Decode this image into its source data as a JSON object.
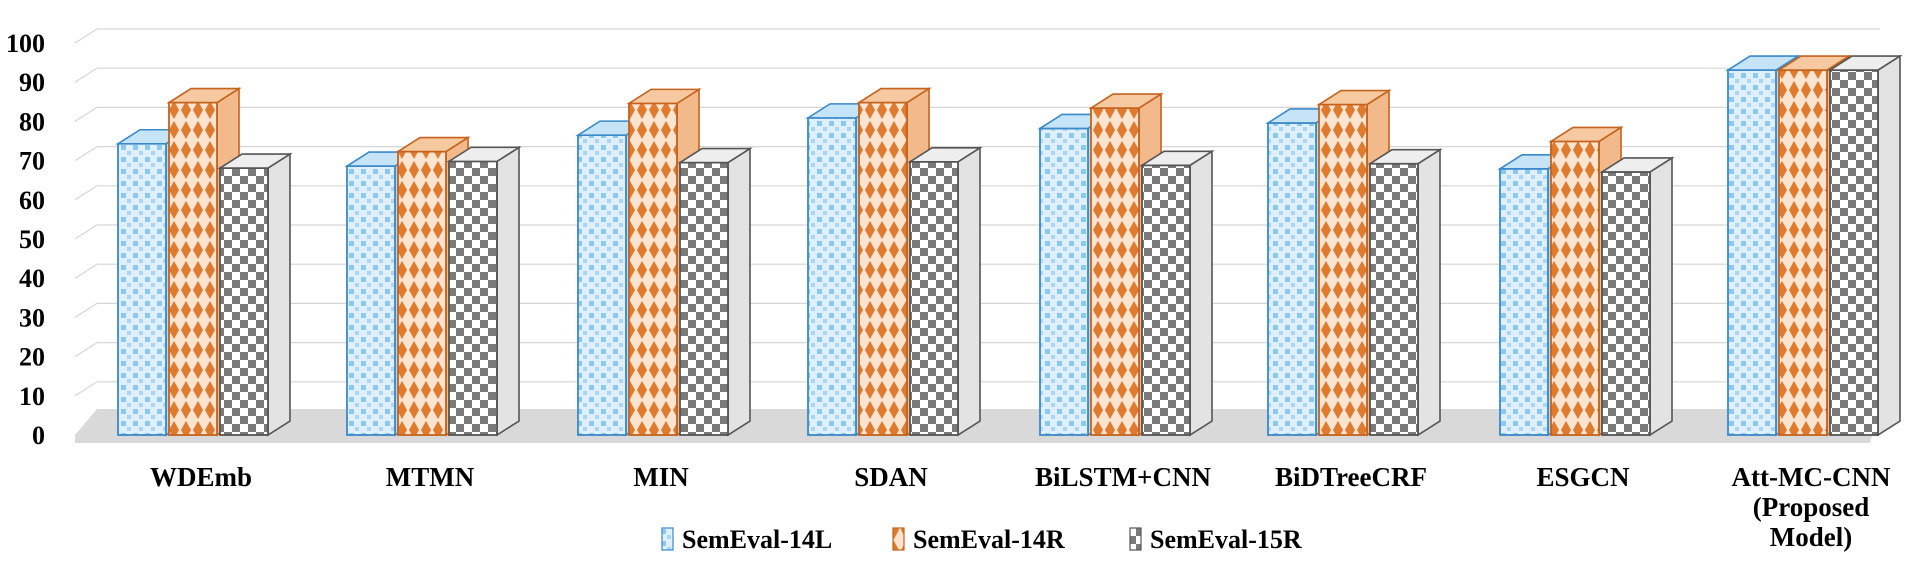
{
  "chart_data": {
    "type": "bar",
    "title": "",
    "xlabel": "",
    "ylabel": "",
    "ylim": [
      0,
      100
    ],
    "yticks": [
      0,
      10,
      20,
      30,
      40,
      50,
      60,
      70,
      80,
      90,
      100
    ],
    "grid": true,
    "legend_position": "bottom",
    "categories": [
      [
        "WDEmb"
      ],
      [
        "MTMN"
      ],
      [
        "MIN"
      ],
      [
        "SDAN"
      ],
      [
        "BiLSTM+CNN"
      ],
      [
        "BiDTreeCRF"
      ],
      [
        "ESGCN"
      ],
      [
        "Att-MC-CNN",
        "(Proposed",
        "Model)"
      ]
    ],
    "series": [
      {
        "name": "SemEval-14L",
        "color": "#5aa9e6",
        "values": [
          74.3,
          68.6,
          76.5,
          80.9,
          78.2,
          79.6,
          67.9,
          93.1
        ]
      },
      {
        "name": "SemEval-14R",
        "color": "#e07a2e",
        "values": [
          84.8,
          72.3,
          84.6,
          84.8,
          83.4,
          84.3,
          74.9,
          93.1
        ]
      },
      {
        "name": "SemEval-15R",
        "color": "#777777",
        "values": [
          68.1,
          69.8,
          69.5,
          69.7,
          68.8,
          69.2,
          67.1,
          93.1
        ]
      }
    ]
  }
}
